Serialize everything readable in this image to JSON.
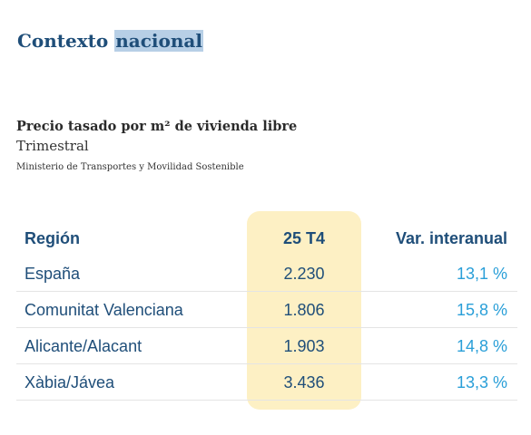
{
  "header": {
    "title_part1": "Contexto",
    "title_part2": "nacional"
  },
  "info": {
    "subtitle": "Precio tasado por m² de vivienda libre",
    "frequency": "Trimestral",
    "source": "Ministerio de Transportes y Movilidad Sostenible"
  },
  "table": {
    "headers": {
      "region": "Región",
      "period": "25 T4",
      "variation": "Var. interanual"
    },
    "rows": [
      {
        "region": "España",
        "value": "2.230",
        "variation": "13,1 %"
      },
      {
        "region": "Comunitat Valenciana",
        "value": "1.806",
        "variation": "15,8 %"
      },
      {
        "region": "Alicante/Alacant",
        "value": "1.903",
        "variation": "14,8 %"
      },
      {
        "region": "Xàbia/Jávea",
        "value": "3.436",
        "variation": "13,3 %"
      }
    ]
  },
  "colors": {
    "title": "#1f4e79",
    "title_highlight": "#b7cfe6",
    "column_highlight": "#fdf0c4",
    "variation_text": "#2a9fd8"
  }
}
